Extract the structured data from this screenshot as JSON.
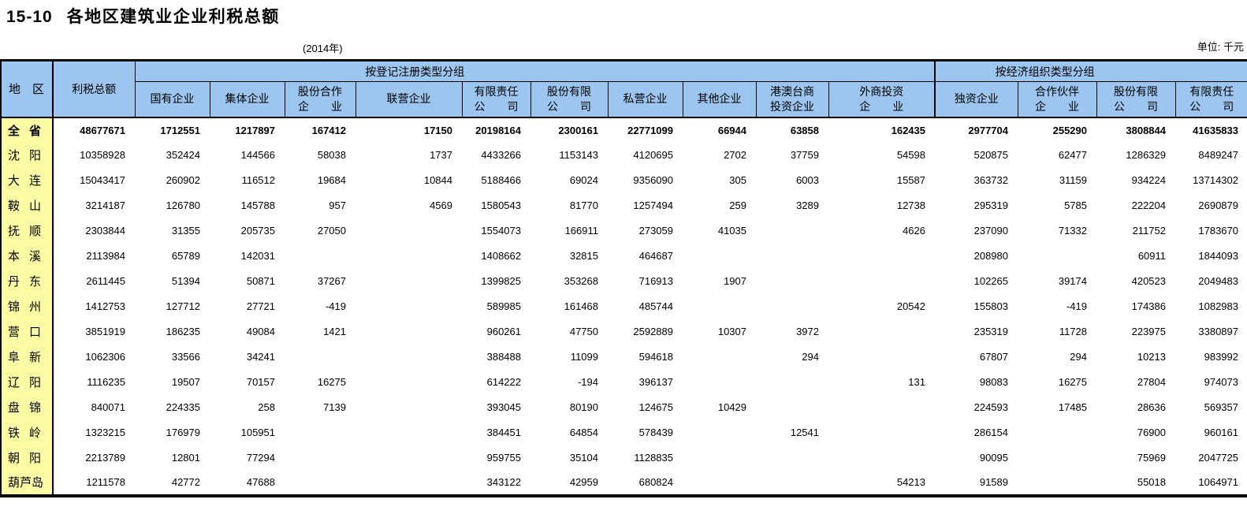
{
  "page": {
    "table_no": "15-10",
    "title": "各地区建筑业企业利税总额",
    "year_note": "(2014年)",
    "unit_note": "单位: 千元"
  },
  "colors": {
    "header_bg": "#9CC6EF",
    "region_col_bg": "#FCFCA4",
    "border": "#000000"
  },
  "table": {
    "corner": {
      "region": "地区",
      "total": "利税总额"
    },
    "groups": [
      {
        "label": "按登记注册类型分组",
        "span": 10
      },
      {
        "label": "按经济组织类型分组",
        "span": 4
      }
    ],
    "columns": [
      {
        "key": "state-owned",
        "label": "国有企业"
      },
      {
        "key": "collective",
        "label": "集体企业"
      },
      {
        "key": "share-cooperative",
        "label": "股份合作\n企　　业"
      },
      {
        "key": "joint-operation",
        "label": "联营企业"
      },
      {
        "key": "limited-liability",
        "label": "有限责任\n公　　司"
      },
      {
        "key": "shareholding-ltd",
        "label": "股份有限\n公　　司"
      },
      {
        "key": "private",
        "label": "私营企业"
      },
      {
        "key": "other",
        "label": "其他企业"
      },
      {
        "key": "hk-macao-taiwan",
        "label": "港澳台商\n投资企业"
      },
      {
        "key": "foreign-invested",
        "label": "外商投资\n企　　业"
      },
      {
        "key": "sole-proprietorship",
        "label": "独资企业"
      },
      {
        "key": "partnership",
        "label": "合作伙伴\n企　　业"
      },
      {
        "key": "shareholding-ltd-econ",
        "label": "股份有限\n公　　司"
      },
      {
        "key": "limited-liability-econ",
        "label": "有限责任\n公　　司"
      }
    ],
    "rows": [
      {
        "key": "province-total",
        "region": "全省",
        "bold": true,
        "values": [
          "48677671",
          "1712551",
          "1217897",
          "167412",
          "17150",
          "20198164",
          "2300161",
          "22771099",
          "66944",
          "63858",
          "162435",
          "2977704",
          "255290",
          "3808844",
          "41635833"
        ]
      },
      {
        "key": "shenyang",
        "region": "沈阳",
        "bold": false,
        "values": [
          "10358928",
          "352424",
          "144566",
          "58038",
          "1737",
          "4433266",
          "1153143",
          "4120695",
          "2702",
          "37759",
          "54598",
          "520875",
          "62477",
          "1286329",
          "8489247"
        ]
      },
      {
        "key": "dalian",
        "region": "大连",
        "bold": false,
        "values": [
          "15043417",
          "260902",
          "116512",
          "19684",
          "10844",
          "5188466",
          "69024",
          "9356090",
          "305",
          "6003",
          "15587",
          "363732",
          "31159",
          "934224",
          "13714302"
        ]
      },
      {
        "key": "anshan",
        "region": "鞍山",
        "bold": false,
        "values": [
          "3214187",
          "126780",
          "145788",
          "957",
          "4569",
          "1580543",
          "81770",
          "1257494",
          "259",
          "3289",
          "12738",
          "295319",
          "5785",
          "222204",
          "2690879"
        ]
      },
      {
        "key": "fushun",
        "region": "抚顺",
        "bold": false,
        "values": [
          "2303844",
          "31355",
          "205735",
          "27050",
          "",
          "1554073",
          "166911",
          "273059",
          "41035",
          "",
          "4626",
          "237090",
          "71332",
          "211752",
          "1783670"
        ]
      },
      {
        "key": "benxi",
        "region": "本溪",
        "bold": false,
        "values": [
          "2113984",
          "65789",
          "142031",
          "",
          "",
          "1408662",
          "32815",
          "464687",
          "",
          "",
          "",
          "208980",
          "",
          "60911",
          "1844093"
        ]
      },
      {
        "key": "dandong",
        "region": "丹东",
        "bold": false,
        "values": [
          "2611445",
          "51394",
          "50871",
          "37267",
          "",
          "1399825",
          "353268",
          "716913",
          "1907",
          "",
          "",
          "102265",
          "39174",
          "420523",
          "2049483"
        ]
      },
      {
        "key": "jinzhou",
        "region": "锦州",
        "bold": false,
        "values": [
          "1412753",
          "127712",
          "27721",
          "-419",
          "",
          "589985",
          "161468",
          "485744",
          "",
          "",
          "20542",
          "155803",
          "-419",
          "174386",
          "1082983"
        ]
      },
      {
        "key": "yingkou",
        "region": "营口",
        "bold": false,
        "values": [
          "3851919",
          "186235",
          "49084",
          "1421",
          "",
          "960261",
          "47750",
          "2592889",
          "10307",
          "3972",
          "",
          "235319",
          "11728",
          "223975",
          "3380897"
        ]
      },
      {
        "key": "fuxin",
        "region": "阜新",
        "bold": false,
        "values": [
          "1062306",
          "33566",
          "34241",
          "",
          "",
          "388488",
          "11099",
          "594618",
          "",
          "294",
          "",
          "67807",
          "294",
          "10213",
          "983992"
        ]
      },
      {
        "key": "liaoyang",
        "region": "辽阳",
        "bold": false,
        "values": [
          "1116235",
          "19507",
          "70157",
          "16275",
          "",
          "614222",
          "-194",
          "396137",
          "",
          "",
          "131",
          "98083",
          "16275",
          "27804",
          "974073"
        ]
      },
      {
        "key": "panjin",
        "region": "盘锦",
        "bold": false,
        "values": [
          "840071",
          "224335",
          "258",
          "7139",
          "",
          "393045",
          "80190",
          "124675",
          "10429",
          "",
          "",
          "224593",
          "17485",
          "28636",
          "569357"
        ]
      },
      {
        "key": "tieling",
        "region": "铁岭",
        "bold": false,
        "values": [
          "1323215",
          "176979",
          "105951",
          "",
          "",
          "384451",
          "64854",
          "578439",
          "",
          "12541",
          "",
          "286154",
          "",
          "76900",
          "960161"
        ]
      },
      {
        "key": "chaoyang",
        "region": "朝阳",
        "bold": false,
        "values": [
          "2213789",
          "12801",
          "77294",
          "",
          "",
          "959755",
          "35104",
          "1128835",
          "",
          "",
          "",
          "90095",
          "",
          "75969",
          "2047725"
        ]
      },
      {
        "key": "huludao",
        "region": "葫芦岛",
        "bold": false,
        "values": [
          "1211578",
          "42772",
          "47688",
          "",
          "",
          "343122",
          "42959",
          "680824",
          "",
          "",
          "54213",
          "91589",
          "",
          "55018",
          "1064971"
        ]
      }
    ]
  }
}
